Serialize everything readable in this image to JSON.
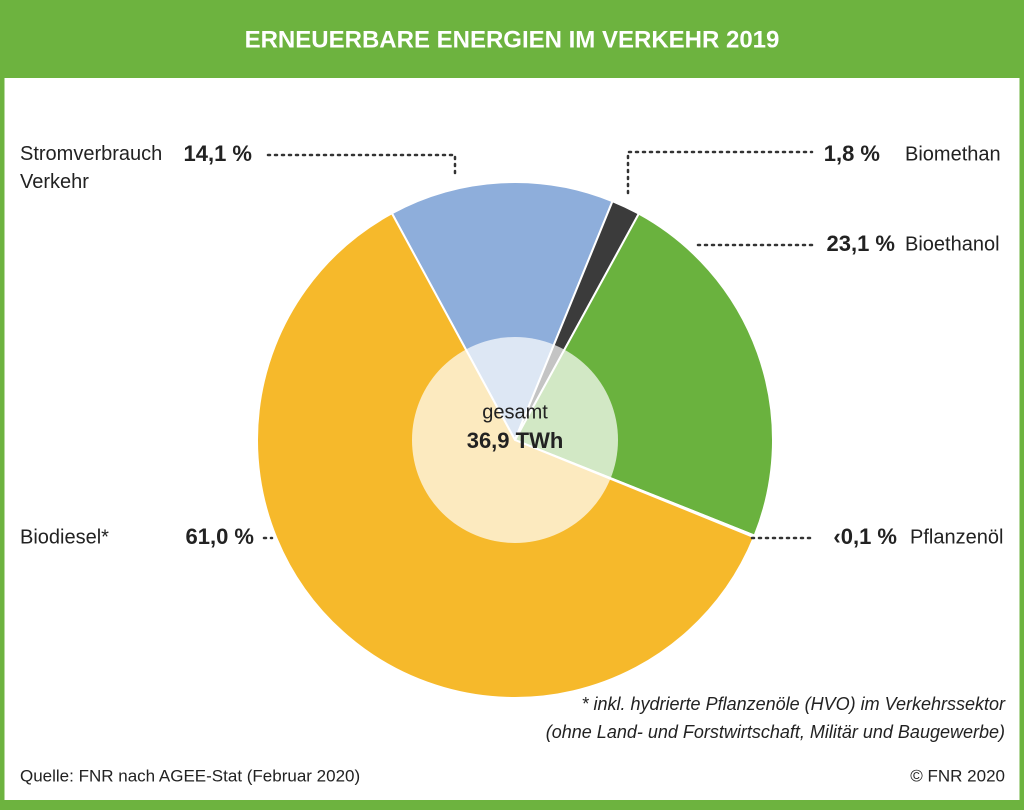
{
  "chart_data": {
    "type": "pie",
    "title": "ERNEUERBARE ENERGIEN IM VERKEHR 2019",
    "categories": [
      "Stromverbrauch Verkehr",
      "Biomethan",
      "Bioethanol",
      "Pflanzenöl",
      "Biodiesel*"
    ],
    "values": [
      14.1,
      1.8,
      23.1,
      0.1,
      61.0
    ],
    "value_labels": [
      "14,1 %",
      "1,8 %",
      "23,1 %",
      "‹0,1 %",
      "61,0 %"
    ],
    "colors": [
      "#8eaedb",
      "#3b3b3b",
      "#6ab23e",
      "#d0204f",
      "#f6b92b"
    ],
    "center_label": "gesamt",
    "total_label": "36,9 TWh",
    "notes": [
      "* inkl. hydrierte Pflanzenöle (HVO) im Verkehrssektor",
      "(ohne Land- und Forstwirtschaft, Militär und Baugewerbe)"
    ],
    "source": "Quelle: FNR nach AGEE-Stat (Februar 2020)",
    "copyright": "© FNR 2020"
  }
}
